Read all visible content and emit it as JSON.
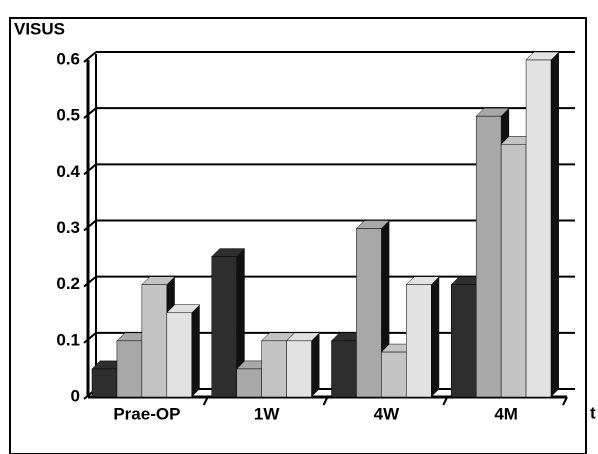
{
  "chart_data": {
    "type": "bar3d",
    "y_label": "VISUS",
    "x_label": "t",
    "categories": [
      "Prae-OP",
      "1W",
      "4W",
      "4M"
    ],
    "series": [
      {
        "color": "#2e2e2e",
        "values": [
          0.05,
          0.25,
          0.1,
          0.2
        ]
      },
      {
        "color": "#a8a8a8",
        "values": [
          0.1,
          0.05,
          0.3,
          0.5
        ]
      },
      {
        "color": "#c4c4c4",
        "values": [
          0.2,
          0.1,
          0.08,
          0.45
        ]
      },
      {
        "color": "#e2e2e2",
        "values": [
          0.15,
          0.1,
          0.2,
          0.6
        ]
      }
    ],
    "ylim": [
      0,
      0.6
    ],
    "yticks": [
      0,
      0.1,
      0.2,
      0.3,
      0.4,
      0.5,
      0.6
    ],
    "grid": true
  }
}
